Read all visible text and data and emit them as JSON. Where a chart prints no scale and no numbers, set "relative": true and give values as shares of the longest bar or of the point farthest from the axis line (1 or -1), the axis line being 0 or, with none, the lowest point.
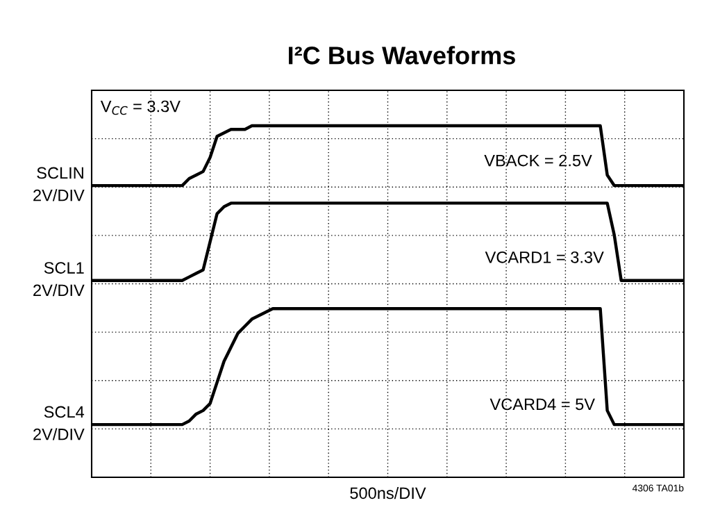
{
  "chart_data": {
    "type": "line",
    "title": "I²C Bus Waveforms",
    "xlabel": "500ns/DIV",
    "relative": true,
    "grid": true,
    "line_style": "solid",
    "marker": "none",
    "categories": [
      null,
      null,
      null,
      null,
      null,
      null,
      null,
      null,
      null,
      null,
      null,
      null,
      null,
      null,
      null,
      null,
      null,
      null,
      null,
      null,
      null,
      null,
      null,
      null,
      null,
      null,
      null,
      null,
      null,
      null,
      null,
      null,
      null,
      null,
      null,
      null,
      null,
      null,
      null,
      null,
      null,
      null,
      null,
      null,
      null,
      null,
      null,
      null,
      null,
      null,
      null,
      null,
      null,
      null,
      null,
      null,
      null,
      null,
      null,
      null,
      null,
      null,
      null,
      null,
      null,
      null,
      null,
      null,
      null,
      null,
      null,
      null,
      null,
      null,
      null,
      null,
      null,
      null,
      null,
      null,
      null,
      null,
      null,
      null,
      null,
      null
    ],
    "series": [
      {
        "name": "SCLIN\n2V/DIV",
        "color": "#000000",
        "values": [
          0.83,
          0.83,
          0.83,
          0.83,
          0.83,
          0.83,
          0.83,
          0.83,
          0.83,
          0.83,
          0.83,
          0.83,
          0.83,
          0.83,
          0.85,
          0.86,
          0.87,
          0.91,
          0.97,
          0.98,
          0.99,
          0.99,
          0.99,
          1.0,
          1.0,
          1.0,
          1.0,
          1.0,
          1.0,
          1.0,
          1.0,
          1.0,
          1.0,
          1.0,
          1.0,
          1.0,
          1.0,
          1.0,
          1.0,
          1.0,
          1.0,
          1.0,
          1.0,
          1.0,
          1.0,
          1.0,
          1.0,
          1.0,
          1.0,
          1.0,
          1.0,
          1.0,
          1.0,
          1.0,
          1.0,
          1.0,
          1.0,
          1.0,
          1.0,
          1.0,
          1.0,
          1.0,
          1.0,
          1.0,
          1.0,
          1.0,
          1.0,
          1.0,
          1.0,
          1.0,
          1.0,
          1.0,
          1.0,
          1.0,
          0.86,
          0.83,
          0.83,
          0.83,
          0.83,
          0.83,
          0.83,
          0.83,
          0.83,
          0.83,
          0.83,
          0.83
        ]
      },
      {
        "name": "SCL1\n2V/DIV",
        "color": "#000000",
        "values": [
          0.56,
          0.56,
          0.56,
          0.56,
          0.56,
          0.56,
          0.56,
          0.56,
          0.56,
          0.56,
          0.56,
          0.56,
          0.56,
          0.56,
          0.57,
          0.58,
          0.59,
          0.67,
          0.75,
          0.77,
          0.78,
          0.78,
          0.78,
          0.78,
          0.78,
          0.78,
          0.78,
          0.78,
          0.78,
          0.78,
          0.78,
          0.78,
          0.78,
          0.78,
          0.78,
          0.78,
          0.78,
          0.78,
          0.78,
          0.78,
          0.78,
          0.78,
          0.78,
          0.78,
          0.78,
          0.78,
          0.78,
          0.78,
          0.78,
          0.78,
          0.78,
          0.78,
          0.78,
          0.78,
          0.78,
          0.78,
          0.78,
          0.78,
          0.78,
          0.78,
          0.78,
          0.78,
          0.78,
          0.78,
          0.78,
          0.78,
          0.78,
          0.78,
          0.78,
          0.78,
          0.78,
          0.78,
          0.78,
          0.78,
          0.78,
          0.69,
          0.56,
          0.56,
          0.56,
          0.56,
          0.56,
          0.56,
          0.56,
          0.56,
          0.56,
          0.56
        ]
      },
      {
        "name": "SCL4\n2V/DIV",
        "color": "#000000",
        "values": [
          0.15,
          0.15,
          0.15,
          0.15,
          0.15,
          0.15,
          0.15,
          0.15,
          0.15,
          0.15,
          0.15,
          0.15,
          0.15,
          0.15,
          0.16,
          0.18,
          0.19,
          0.21,
          0.27,
          0.33,
          0.37,
          0.41,
          0.43,
          0.45,
          0.46,
          0.47,
          0.48,
          0.48,
          0.48,
          0.48,
          0.48,
          0.48,
          0.48,
          0.48,
          0.48,
          0.48,
          0.48,
          0.48,
          0.48,
          0.48,
          0.48,
          0.48,
          0.48,
          0.48,
          0.48,
          0.48,
          0.48,
          0.48,
          0.48,
          0.48,
          0.48,
          0.48,
          0.48,
          0.48,
          0.48,
          0.48,
          0.48,
          0.48,
          0.48,
          0.48,
          0.48,
          0.48,
          0.48,
          0.48,
          0.48,
          0.48,
          0.48,
          0.48,
          0.48,
          0.48,
          0.48,
          0.48,
          0.48,
          0.48,
          0.19,
          0.15,
          0.15,
          0.15,
          0.15,
          0.15,
          0.15,
          0.15,
          0.15,
          0.15,
          0.15,
          0.15
        ]
      }
    ],
    "annotations": [
      "V$_{CC}$ = 3.3V",
      "VBACK = 2.5V",
      "VCARD1 = 3.3V",
      "VCARD4 = 5V",
      "4306 TA01b"
    ]
  }
}
